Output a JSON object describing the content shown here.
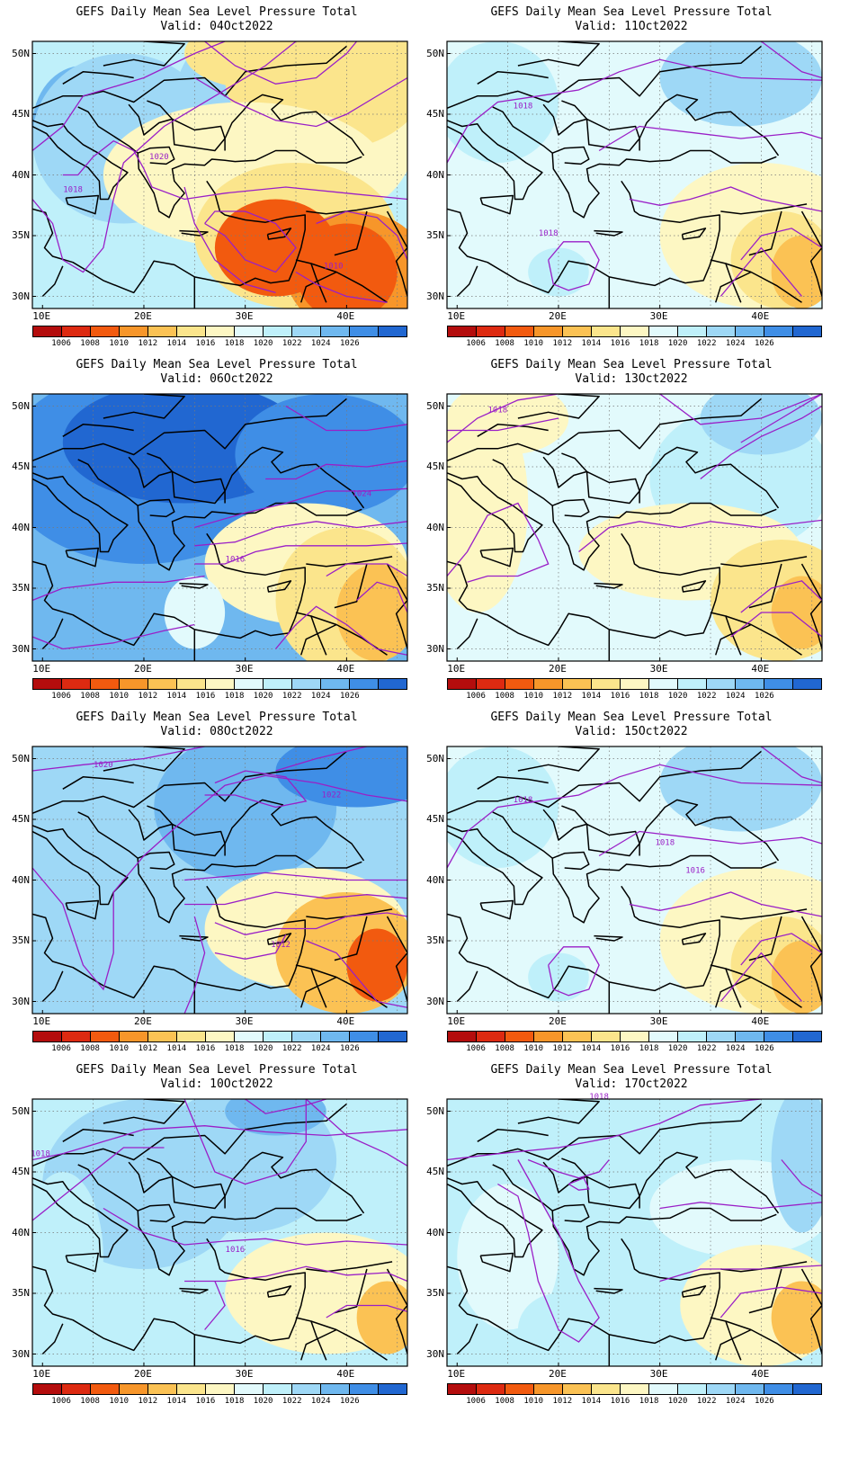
{
  "figure_title": "GEFS Daily Mean Sea Level Pressure Total",
  "valid_prefix": "Valid:",
  "latitude_ticks": [
    "50N",
    "45N",
    "40N",
    "35N",
    "30N"
  ],
  "longitude_ticks": [
    "10E",
    "20E",
    "30E",
    "40E"
  ],
  "colorbar": {
    "labels": [
      "1006",
      "1008",
      "1010",
      "1012",
      "1014",
      "1016",
      "1018",
      "1020",
      "1022",
      "1024",
      "1026"
    ],
    "colors": [
      "#b40d0d",
      "#dd2a11",
      "#f25a0f",
      "#f7962a",
      "#fbc254",
      "#fbe58c",
      "#fdf7c3",
      "#e2fafc",
      "#bff0fa",
      "#9ed8f6",
      "#6fb8ef",
      "#3f8ee6",
      "#2167d1"
    ]
  },
  "panels": [
    {
      "date": "04Oct2022",
      "regime": "low_east",
      "contour_labels": [
        "1020",
        "1018",
        "1010"
      ]
    },
    {
      "date": "11Oct2022",
      "regime": "weak",
      "contour_labels": [
        "1018",
        "1018"
      ]
    },
    {
      "date": "06Oct2022",
      "regime": "strong_high",
      "contour_labels": [
        "1024",
        "1016"
      ]
    },
    {
      "date": "13Oct2022",
      "regime": "mixed",
      "contour_labels": [
        "1018"
      ]
    },
    {
      "date": "08Oct2022",
      "regime": "high_north",
      "contour_labels": [
        "1020",
        "1022",
        "1012"
      ]
    },
    {
      "date": "15Oct2022",
      "regime": "weak",
      "contour_labels": [
        "1018",
        "1018",
        "1016"
      ]
    },
    {
      "date": "10Oct2022",
      "regime": "moderate_high",
      "contour_labels": [
        "1018",
        "1016"
      ]
    },
    {
      "date": "17Oct2022",
      "regime": "weak2",
      "contour_labels": [
        "1018"
      ]
    }
  ]
}
